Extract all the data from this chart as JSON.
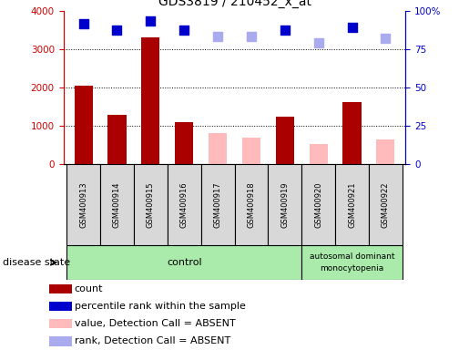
{
  "title": "GDS3819 / 210452_x_at",
  "samples": [
    "GSM400913",
    "GSM400914",
    "GSM400915",
    "GSM400916",
    "GSM400917",
    "GSM400918",
    "GSM400919",
    "GSM400920",
    "GSM400921",
    "GSM400922"
  ],
  "count_values": [
    2050,
    1300,
    3300,
    1100,
    null,
    null,
    1250,
    null,
    1620,
    null
  ],
  "count_absent": [
    null,
    null,
    null,
    null,
    820,
    700,
    null,
    530,
    null,
    650
  ],
  "rank_values": [
    3650,
    3500,
    3720,
    3490,
    null,
    null,
    3490,
    null,
    3560,
    null
  ],
  "rank_absent": [
    null,
    null,
    null,
    null,
    3330,
    3330,
    null,
    3170,
    null,
    3270
  ],
  "ylim_left": [
    0,
    4000
  ],
  "ylim_right": [
    0,
    100
  ],
  "yticks_left": [
    0,
    1000,
    2000,
    3000,
    4000
  ],
  "yticks_right": [
    0,
    25,
    50,
    75,
    100
  ],
  "ytick_labels_right": [
    "0",
    "25",
    "50",
    "75",
    "100%"
  ],
  "left_axis_color": "#cc0000",
  "right_axis_color": "#0000cc",
  "bar_color_present": "#aa0000",
  "bar_color_absent": "#ffbbbb",
  "dot_color_present": "#0000cc",
  "dot_color_absent": "#aaaaee",
  "grid_color": "black",
  "sample_bg_color": "#d8d8d8",
  "control_bg": "#aaeaaa",
  "disease_bg": "#aaeaaa",
  "legend_items": [
    "count",
    "percentile rank within the sample",
    "value, Detection Call = ABSENT",
    "rank, Detection Call = ABSENT"
  ],
  "legend_colors": [
    "#aa0000",
    "#0000cc",
    "#ffbbbb",
    "#aaaaee"
  ],
  "bar_width": 0.55,
  "dot_size": 55,
  "n_control": 7,
  "control_label": "control",
  "disease_label": "autosomal dominant\nmonocytopenia",
  "disease_state_label": "disease state"
}
